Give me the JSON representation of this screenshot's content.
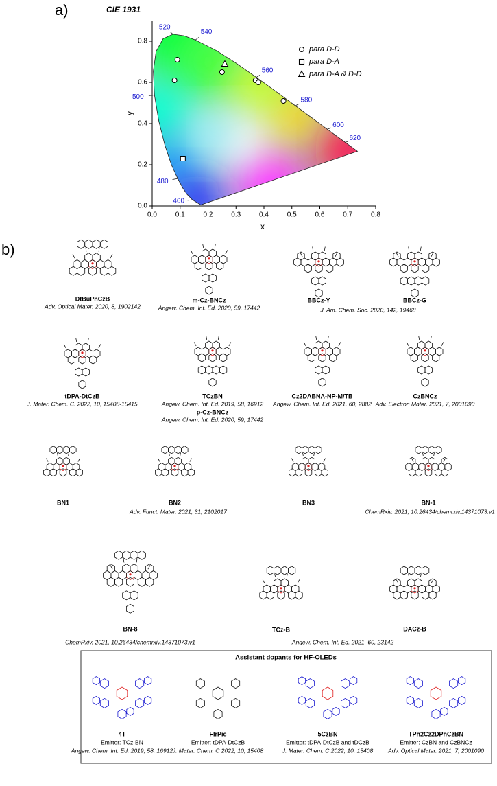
{
  "panel_labels": [
    "a)",
    "b)"
  ],
  "chart_data": {
    "type": "scatter",
    "title": "CIE 1931",
    "xlabel": "x",
    "ylabel": "y",
    "xlim": [
      0,
      0.8
    ],
    "ylim": [
      0,
      0.9
    ],
    "xticks": [
      {
        "value": 0,
        "label": "0.0"
      },
      0.1,
      0.2,
      0.3,
      0.4,
      0.5,
      0.6,
      0.7,
      0.8
    ],
    "yticks": [
      {
        "value": 0,
        "label": "0.0"
      },
      0.2,
      0.4,
      0.6,
      0.8
    ],
    "wavelength_labels": [
      "460",
      "480",
      "500",
      "520",
      "540",
      "560",
      "580",
      "600",
      "620"
    ],
    "legend_position": "upper right",
    "series": [
      {
        "name": "para D-D",
        "marker": "circle",
        "color": "#000000",
        "x": [
          0.09,
          0.08,
          0.25,
          0.37,
          0.38,
          0.47
        ],
        "y": [
          0.71,
          0.61,
          0.65,
          0.61,
          0.6,
          0.51
        ]
      },
      {
        "name": "para D-A",
        "marker": "square",
        "color": "#000000",
        "x": [
          0.11
        ],
        "y": [
          0.23
        ]
      },
      {
        "name": "para D-A & D-D",
        "marker": "triangle",
        "color": "#000000",
        "x": [
          0.26
        ],
        "y": [
          0.69
        ]
      }
    ]
  },
  "molecules": [
    {
      "name": "DtBuPhCzB"
    },
    {
      "name": "m-Cz-BNCz"
    },
    {
      "name": "BBCz-Y"
    },
    {
      "name": "BBCz-G"
    },
    {
      "name": "tDPA-DtCzB"
    },
    {
      "name": "TCzBN",
      "alt_name": "p-Cz-BNCz"
    },
    {
      "name": "Cz2DABNA-NP-M/TB"
    },
    {
      "name": "CzBNCz"
    },
    {
      "name": "BN1"
    },
    {
      "name": "BN2"
    },
    {
      "name": "BN3"
    },
    {
      "name": "BN-1"
    },
    {
      "name": "BN-8"
    },
    {
      "name": "TCz-B"
    },
    {
      "name": "DACz-B"
    }
  ],
  "references": [
    "Adv. Optical Mater. 2020, 8, 1902142",
    "Angew. Chem. Int. Ed. 2020, 59, 17442",
    "J. Am. Chem. Soc. 2020, 142, 19468",
    "J. Mater. Chem. C. 2022, 10, 15408-15415",
    "Angew. Chem. Int. Ed. 2019, 58, 16912",
    "Angew. Chem. Int. Ed. 2020, 59, 17442",
    "Angew. Chem. Int. Ed. 2021, 60, 2882",
    "Adv. Electron Mater. 2021, 7, 2001090",
    "Adv. Funct. Mater. 2021, 31, 2102017",
    "ChemRxiv. 2021, 10.26434/chemrxiv.14371073.v1",
    "ChemRxiv. 2021, 10.26434/chemrxiv.14371073.v1",
    "Angew. Chem. Int. Ed. 2021, 60, 23142"
  ],
  "assistant_dopants": {
    "title": "Assistant dopants for HF-OLEDs",
    "items": [
      {
        "name": "4T",
        "emitter": "Emitter: TCz-BN",
        "reference": "Angew. Chem. Int. Ed. 2019, 58, 16912"
      },
      {
        "name": "FIrPic",
        "emitter": "Emitter: tDPA-DtCzB",
        "reference": "J. Mater. Chem. C 2022, 10, 15408"
      },
      {
        "name": "5CzBN",
        "emitter": "Emitter: tDPA-DtCzB and tDCzB",
        "reference": "J. Mater. Chem. C 2022, 10, 15408"
      },
      {
        "name": "TPh2Cz2DPhCzBN",
        "emitter": "Emitter: CzBN and CzBNCz",
        "reference": "Adv. Optical Mater. 2021, 7, 2001090"
      }
    ]
  }
}
